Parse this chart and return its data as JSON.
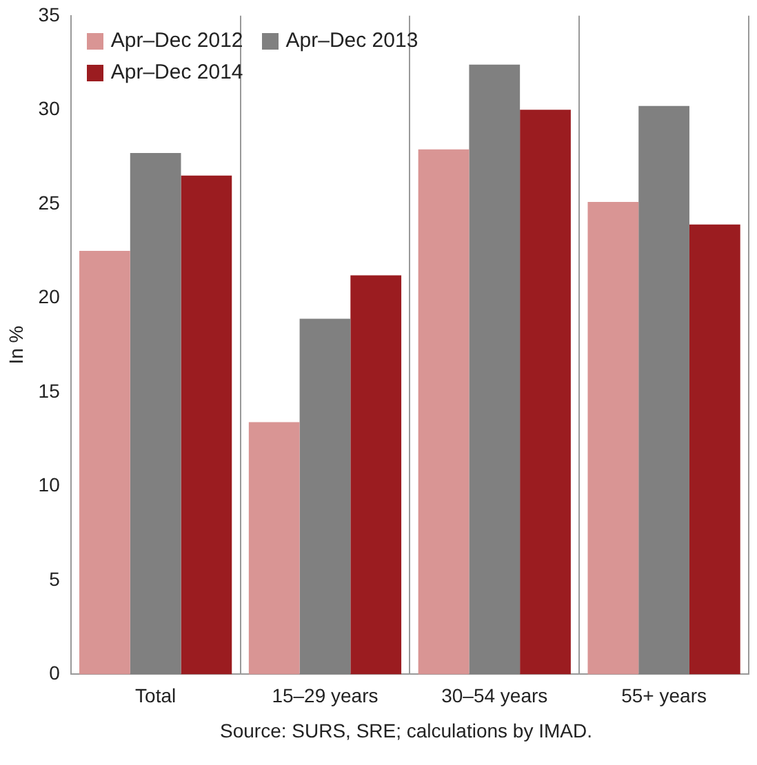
{
  "chart_data": {
    "type": "bar",
    "ylabel": "In %",
    "categories": [
      "Total",
      "15–29 years",
      "30–54 years",
      "55+ years"
    ],
    "series": [
      {
        "name": "Apr–Dec 2012",
        "color": "#d99594",
        "values": [
          22.5,
          13.4,
          27.9,
          25.1
        ]
      },
      {
        "name": "Apr–Dec 2013",
        "color": "#808080",
        "values": [
          27.7,
          18.9,
          32.4,
          30.2
        ]
      },
      {
        "name": "Apr–Dec 2014",
        "color": "#9b1c20",
        "values": [
          26.5,
          21.2,
          30.0,
          23.9
        ]
      }
    ],
    "ylim": [
      0,
      35
    ],
    "yticks": [
      0,
      5,
      10,
      15,
      20,
      25,
      30,
      35
    ],
    "grid": "x",
    "legend": "top left",
    "annotations": [
      "Source: SURS, SRE; calculations by IMAD."
    ]
  }
}
